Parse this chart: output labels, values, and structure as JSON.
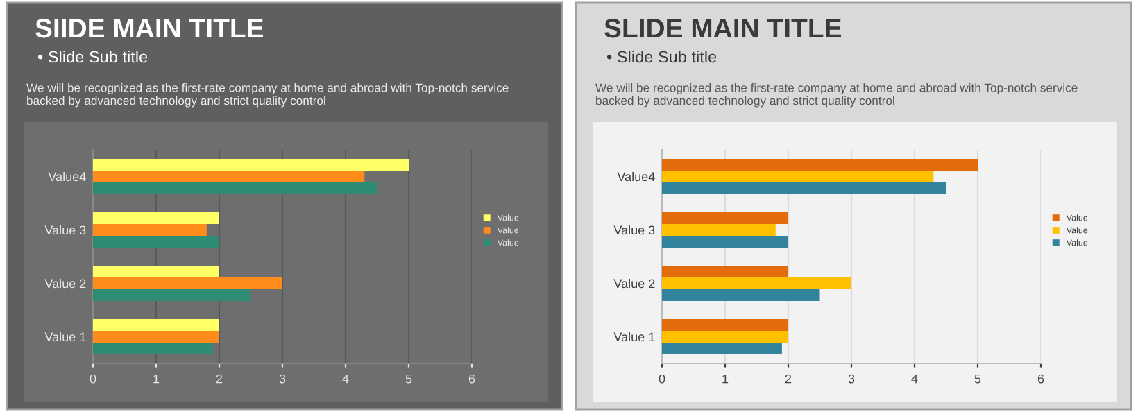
{
  "chart_data": [
    {
      "type": "bar",
      "orientation": "horizontal",
      "title": "SIIDE MAIN TITLE",
      "subtitle": "• Slide Sub title",
      "annotations": [
        "We will be recognized as the first-rate company at home and abroad with Top-notch service backed by advanced technology and strict quality control"
      ],
      "categories": [
        "Value4",
        "Value 3",
        "Value 2",
        "Value 1"
      ],
      "series": [
        {
          "name": "Value",
          "color": "#ffff66",
          "values": [
            5,
            2,
            2,
            2
          ]
        },
        {
          "name": "Value",
          "color": "#ff8c1a",
          "values": [
            4.3,
            1.8,
            3,
            2
          ]
        },
        {
          "name": "Value",
          "color": "#2e8b74",
          "values": [
            4.5,
            2,
            2.5,
            1.9
          ]
        }
      ],
      "xlim": [
        0,
        6
      ],
      "xticks": [
        0,
        1,
        2,
        3,
        4,
        5,
        6
      ],
      "grid": "x",
      "legend": "right"
    },
    {
      "type": "bar",
      "orientation": "horizontal",
      "title": "SLIDE MAIN TITLE",
      "subtitle": "• Slide Sub title",
      "annotations": [
        "We will be recognized as the first-rate company at home and abroad with Top-notch service backed by advanced technology and strict quality control"
      ],
      "categories": [
        "Value4",
        "Value 3",
        "Value 2",
        "Value 1"
      ],
      "series": [
        {
          "name": "Value",
          "color": "#e36c0a",
          "values": [
            5,
            2,
            2,
            2
          ]
        },
        {
          "name": "Value",
          "color": "#ffc000",
          "values": [
            4.3,
            1.8,
            3,
            2
          ]
        },
        {
          "name": "Value",
          "color": "#31849b",
          "values": [
            4.5,
            2,
            2.5,
            1.9
          ]
        }
      ],
      "xlim": [
        0,
        6
      ],
      "xticks": [
        0,
        1,
        2,
        3,
        4,
        5,
        6
      ],
      "grid": "x",
      "legend": "right"
    }
  ]
}
